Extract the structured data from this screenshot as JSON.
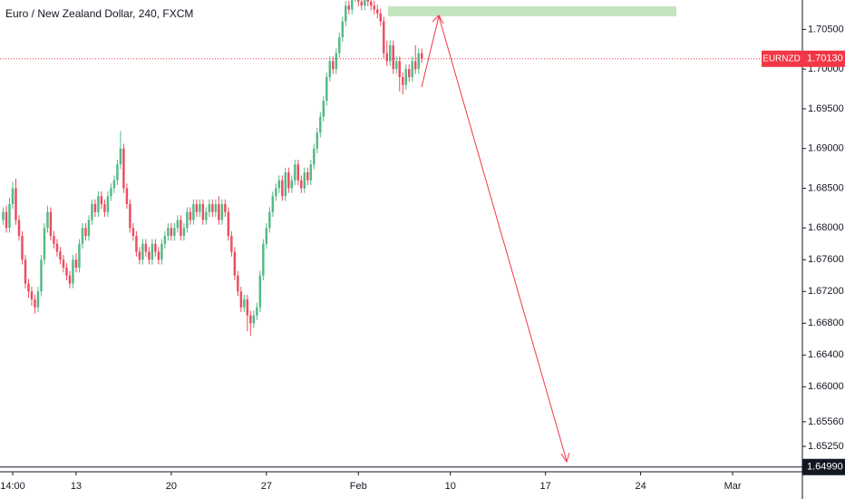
{
  "chart_data": {
    "type": "candlestick",
    "title": "Euro / New Zealand Dollar, 240, FXCM",
    "up_color": "#53b987",
    "down_color": "#eb4d5c",
    "xlim": [
      -1,
      252
    ],
    "ylim": [
      1.6493,
      1.7087
    ],
    "xticks": [
      {
        "value": 3,
        "label": "14:00"
      },
      {
        "value": 23,
        "label": "13"
      },
      {
        "value": 53,
        "label": "20"
      },
      {
        "value": 83,
        "label": "27"
      },
      {
        "value": 112,
        "label": "Feb"
      },
      {
        "value": 141,
        "label": "10"
      },
      {
        "value": 171,
        "label": "17"
      },
      {
        "value": 201,
        "label": "24"
      },
      {
        "value": 230,
        "label": "Mar"
      }
    ],
    "yticks": [
      {
        "value": 1.705,
        "label": "1.70500"
      },
      {
        "value": 1.7,
        "label": "1.70000"
      },
      {
        "value": 1.695,
        "label": "1.69500"
      },
      {
        "value": 1.69,
        "label": "1.69000"
      },
      {
        "value": 1.685,
        "label": "1.68500"
      },
      {
        "value": 1.68,
        "label": "1.68000"
      },
      {
        "value": 1.676,
        "label": "1.67600"
      },
      {
        "value": 1.672,
        "label": "1.67200"
      },
      {
        "value": 1.668,
        "label": "1.66800"
      },
      {
        "value": 1.664,
        "label": "1.66400"
      },
      {
        "value": 1.66,
        "label": "1.66000"
      },
      {
        "value": 1.6556,
        "label": "1.65560"
      },
      {
        "value": 1.6525,
        "label": "1.65250"
      }
    ],
    "last_price": {
      "symbol": "EURNZD",
      "value": 1.7013,
      "label": "1.70130",
      "color": "#f23645"
    },
    "level": {
      "value": 1.6499,
      "label": "1.64990",
      "color": "#131722"
    },
    "open": [
      1.681,
      1.682,
      1.68,
      1.683,
      1.685,
      1.681,
      1.679,
      1.676,
      1.673,
      1.672,
      1.671,
      1.67,
      1.672,
      1.676,
      1.68,
      1.682,
      1.679,
      1.678,
      1.677,
      1.676,
      1.675,
      1.674,
      1.673,
      1.676,
      1.675,
      1.678,
      1.68,
      1.679,
      1.681,
      1.683,
      1.682,
      1.684,
      1.683,
      1.682,
      1.684,
      1.685,
      1.686,
      1.688,
      1.69,
      1.685,
      1.683,
      1.68,
      1.679,
      1.677,
      1.676,
      1.678,
      1.677,
      1.676,
      1.678,
      1.677,
      1.676,
      1.678,
      1.679,
      1.68,
      1.679,
      1.68,
      1.681,
      1.679,
      1.68,
      1.682,
      1.681,
      1.683,
      1.682,
      1.683,
      1.681,
      1.682,
      1.683,
      1.682,
      1.683,
      1.681,
      1.683,
      1.682,
      1.679,
      1.677,
      1.674,
      1.672,
      1.67,
      1.671,
      1.669,
      1.668,
      1.669,
      1.67,
      1.674,
      1.678,
      1.68,
      1.682,
      1.684,
      1.685,
      1.686,
      1.684,
      1.687,
      1.685,
      1.686,
      1.688,
      1.686,
      1.685,
      1.687,
      1.686,
      1.688,
      1.69,
      1.692,
      1.694,
      1.696,
      1.699,
      1.701,
      1.7,
      1.702,
      1.704,
      1.706,
      1.708,
      1.7075,
      1.709,
      1.7095,
      1.7085,
      1.708,
      1.709,
      1.7085,
      1.708,
      1.7075,
      1.707,
      1.706,
      1.702,
      1.701,
      1.703,
      1.7,
      1.701,
      1.699,
      1.698,
      1.7,
      1.699,
      1.701,
      1.7,
      1.702
    ],
    "high": [
      1.6826,
      1.6828,
      1.6838,
      1.6858,
      1.6862,
      1.6816,
      1.6796,
      1.6766,
      1.6736,
      1.6726,
      1.6716,
      1.6726,
      1.6766,
      1.6806,
      1.6828,
      1.6826,
      1.6796,
      1.6786,
      1.6776,
      1.6766,
      1.6756,
      1.6746,
      1.6766,
      1.6768,
      1.6786,
      1.6806,
      1.6806,
      1.6816,
      1.6836,
      1.6836,
      1.6846,
      1.6846,
      1.6836,
      1.6846,
      1.6856,
      1.6866,
      1.6886,
      1.6922,
      1.6906,
      1.6856,
      1.6836,
      1.6806,
      1.6796,
      1.6776,
      1.6786,
      1.6786,
      1.6776,
      1.6786,
      1.6786,
      1.6776,
      1.6786,
      1.6796,
      1.6806,
      1.6806,
      1.6806,
      1.6816,
      1.6816,
      1.6806,
      1.6826,
      1.6826,
      1.6836,
      1.6836,
      1.6836,
      1.6836,
      1.6826,
      1.6836,
      1.6836,
      1.6836,
      1.684,
      1.6836,
      1.6836,
      1.6826,
      1.6796,
      1.6776,
      1.6746,
      1.6726,
      1.6716,
      1.6716,
      1.6696,
      1.6696,
      1.6706,
      1.6746,
      1.6786,
      1.6806,
      1.6826,
      1.6846,
      1.6856,
      1.6866,
      1.6866,
      1.6876,
      1.6876,
      1.6866,
      1.6886,
      1.6886,
      1.6866,
      1.6876,
      1.6876,
      1.6886,
      1.6906,
      1.6926,
      1.6946,
      1.6966,
      1.6996,
      1.7016,
      1.7016,
      1.7026,
      1.7046,
      1.7066,
      1.7086,
      1.7086,
      1.7096,
      1.7101,
      1.7101,
      1.7091,
      1.7096,
      1.7096,
      1.7091,
      1.7086,
      1.7081,
      1.7076,
      1.7066,
      1.7036,
      1.7036,
      1.7036,
      1.7016,
      1.7016,
      1.6996,
      1.7006,
      1.7006,
      1.7016,
      1.703,
      1.7026,
      1.7026
    ],
    "low": [
      1.6804,
      1.6794,
      1.6794,
      1.6824,
      1.6804,
      1.6784,
      1.6754,
      1.6724,
      1.6712,
      1.6702,
      1.6692,
      1.6694,
      1.6714,
      1.6754,
      1.6794,
      1.6784,
      1.6774,
      1.6764,
      1.6754,
      1.6744,
      1.6734,
      1.6724,
      1.6724,
      1.6744,
      1.6744,
      1.6774,
      1.6784,
      1.6784,
      1.6804,
      1.6814,
      1.6814,
      1.6824,
      1.6814,
      1.6814,
      1.6834,
      1.6844,
      1.6854,
      1.6874,
      1.6844,
      1.6824,
      1.6794,
      1.6784,
      1.6764,
      1.6754,
      1.6754,
      1.6764,
      1.6754,
      1.6754,
      1.6764,
      1.6754,
      1.6754,
      1.6774,
      1.6784,
      1.6784,
      1.6784,
      1.6794,
      1.6784,
      1.6784,
      1.6794,
      1.6804,
      1.6804,
      1.6814,
      1.6814,
      1.6804,
      1.6804,
      1.6814,
      1.6814,
      1.6814,
      1.6804,
      1.6804,
      1.6814,
      1.6784,
      1.6764,
      1.6734,
      1.6714,
      1.6694,
      1.6694,
      1.667,
      1.6664,
      1.6674,
      1.6684,
      1.6694,
      1.6734,
      1.6774,
      1.6794,
      1.6814,
      1.6834,
      1.6844,
      1.6834,
      1.6834,
      1.6844,
      1.6844,
      1.6854,
      1.6854,
      1.6844,
      1.6844,
      1.6854,
      1.6854,
      1.6874,
      1.6894,
      1.6914,
      1.6934,
      1.6954,
      1.6984,
      1.6994,
      1.6994,
      1.7014,
      1.7034,
      1.7054,
      1.7069,
      1.7069,
      1.7084,
      1.7079,
      1.7074,
      1.7074,
      1.7079,
      1.7074,
      1.7069,
      1.7064,
      1.7054,
      1.7014,
      1.7004,
      1.7004,
      1.6994,
      1.6994,
      1.6972,
      1.6968,
      1.6974,
      1.6984,
      1.6984,
      1.6994,
      1.6994,
      1.7008
    ],
    "close": [
      1.682,
      1.68,
      1.683,
      1.685,
      1.681,
      1.679,
      1.676,
      1.673,
      1.672,
      1.671,
      1.67,
      1.672,
      1.676,
      1.68,
      1.682,
      1.679,
      1.678,
      1.677,
      1.676,
      1.675,
      1.674,
      1.673,
      1.676,
      1.675,
      1.678,
      1.68,
      1.679,
      1.681,
      1.683,
      1.682,
      1.684,
      1.683,
      1.682,
      1.684,
      1.685,
      1.686,
      1.688,
      1.69,
      1.685,
      1.683,
      1.68,
      1.679,
      1.677,
      1.676,
      1.678,
      1.677,
      1.676,
      1.678,
      1.677,
      1.676,
      1.678,
      1.679,
      1.68,
      1.679,
      1.68,
      1.681,
      1.679,
      1.68,
      1.682,
      1.681,
      1.683,
      1.682,
      1.683,
      1.681,
      1.682,
      1.683,
      1.682,
      1.683,
      1.681,
      1.683,
      1.682,
      1.679,
      1.677,
      1.674,
      1.672,
      1.67,
      1.671,
      1.669,
      1.668,
      1.669,
      1.67,
      1.674,
      1.678,
      1.68,
      1.682,
      1.684,
      1.685,
      1.686,
      1.684,
      1.687,
      1.685,
      1.686,
      1.688,
      1.686,
      1.685,
      1.687,
      1.686,
      1.688,
      1.69,
      1.692,
      1.694,
      1.696,
      1.699,
      1.701,
      1.7,
      1.702,
      1.704,
      1.706,
      1.708,
      1.7075,
      1.709,
      1.7095,
      1.7085,
      1.708,
      1.709,
      1.7085,
      1.708,
      1.7075,
      1.707,
      1.706,
      1.702,
      1.701,
      1.703,
      1.7,
      1.701,
      1.699,
      1.698,
      1.7,
      1.699,
      1.701,
      1.7,
      1.702,
      1.7013
    ]
  }
}
